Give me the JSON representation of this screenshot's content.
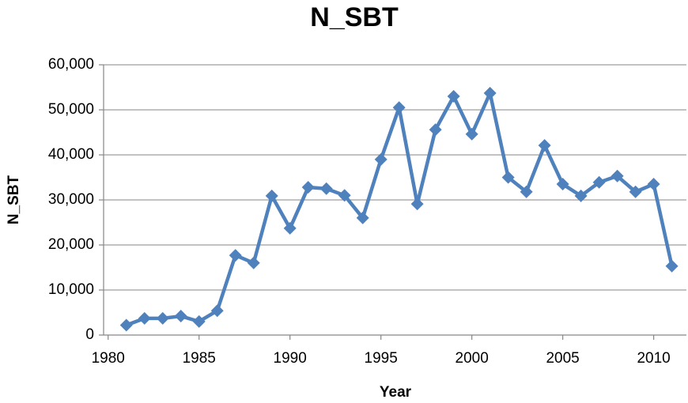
{
  "chart_data": {
    "type": "line",
    "title": "N_SBT",
    "x_label": "Year",
    "y_label": "N_SBT",
    "x": [
      1981,
      1982,
      1983,
      1984,
      1985,
      1986,
      1987,
      1988,
      1989,
      1990,
      1991,
      1992,
      1993,
      1994,
      1995,
      1996,
      1997,
      1998,
      1999,
      2000,
      2001,
      2002,
      2003,
      2004,
      2005,
      2006,
      2007,
      2008,
      2009,
      2010,
      2011
    ],
    "series": [
      {
        "name": "N_SBT",
        "color": "#4f81bd",
        "values": [
          2200,
          3700,
          3700,
          4200,
          3000,
          5400,
          17700,
          16000,
          30900,
          23700,
          32800,
          32500,
          31000,
          26000,
          39000,
          50500,
          29100,
          45600,
          53000,
          44600,
          53700,
          35000,
          31800,
          42100,
          33500,
          30900,
          33900,
          35300,
          31800,
          33500,
          15300
        ]
      }
    ],
    "xlim": [
      1979.75,
      2011.8
    ],
    "xticks": [
      1980,
      1985,
      1990,
      1995,
      2000,
      2005,
      2010
    ],
    "ylim": [
      0,
      60000
    ],
    "yticks": [
      0,
      {
        "value": 10000,
        "label": "10,000"
      },
      {
        "value": 20000,
        "label": "20,000"
      },
      {
        "value": 30000,
        "label": "30,000"
      },
      {
        "value": 40000,
        "label": "40,000"
      },
      {
        "value": 50000,
        "label": "50,000"
      },
      {
        "value": 60000,
        "label": "60,000"
      }
    ],
    "grid": true
  }
}
